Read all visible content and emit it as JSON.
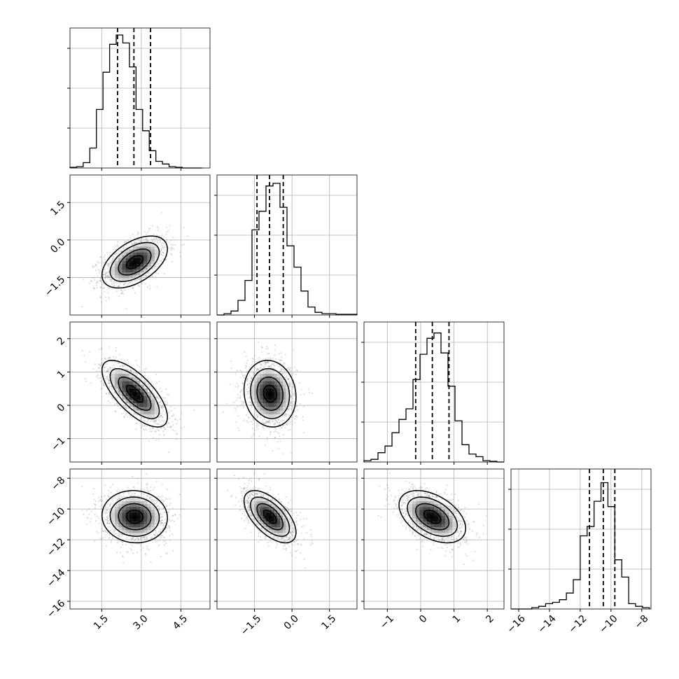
{
  "chart_data": {
    "type": "corner",
    "title": "",
    "params": [
      {
        "range": [
          0.3,
          5.6
        ],
        "ticks": [
          1.5,
          3.0,
          4.5
        ],
        "tick_labels": [
          "1.5",
          "3.0",
          "4.5"
        ],
        "q16": 2.1,
        "q50": 2.72,
        "q84": 3.35,
        "mean": 2.75,
        "sd": 0.62
      },
      {
        "range": [
          -3.0,
          2.6
        ],
        "ticks": [
          -1.5,
          0.0,
          1.5
        ],
        "tick_labels": [
          "−1.5",
          "0.0",
          "1.5"
        ],
        "q16": -1.4,
        "q50": -0.9,
        "q84": -0.35,
        "mean": -0.88,
        "sd": 0.52
      },
      {
        "range": [
          -1.7,
          2.5
        ],
        "ticks": [
          -1,
          0,
          1,
          2
        ],
        "tick_labels": [
          "−1",
          "0",
          "1",
          "2"
        ],
        "q16": -0.15,
        "q50": 0.35,
        "q84": 0.85,
        "mean": 0.35,
        "sd": 0.5
      },
      {
        "range": [
          -16.5,
          -7.4
        ],
        "ticks": [
          -16,
          -14,
          -12,
          -10,
          -8
        ],
        "tick_labels": [
          "−16",
          "−14",
          "−12",
          "−10",
          "−8"
        ],
        "q16": -11.4,
        "q50": -10.5,
        "q84": -9.75,
        "mean": -10.5,
        "sd": 0.85
      }
    ],
    "pairs": [
      {
        "row": 1,
        "col": 0,
        "corr": 0.5
      },
      {
        "row": 2,
        "col": 0,
        "corr": -0.7
      },
      {
        "row": 2,
        "col": 1,
        "corr": -0.1
      },
      {
        "row": 3,
        "col": 0,
        "corr": -0.05
      },
      {
        "row": 3,
        "col": 1,
        "corr": -0.6
      },
      {
        "row": 3,
        "col": 2,
        "corr": -0.45
      }
    ],
    "histograms": [
      {
        "param": 0,
        "bins_x": [
          0.3,
          0.55,
          0.8,
          1.05,
          1.3,
          1.55,
          1.8,
          2.05,
          2.3,
          2.55,
          2.8,
          3.05,
          3.3,
          3.55,
          3.8,
          4.05,
          4.3,
          4.55,
          4.8,
          5.05,
          5.3
        ],
        "heights": [
          0.005,
          0.01,
          0.04,
          0.15,
          0.44,
          0.72,
          0.93,
          1.0,
          0.94,
          0.76,
          0.44,
          0.28,
          0.13,
          0.05,
          0.03,
          0.01,
          0.005,
          0,
          0,
          0
        ]
      },
      {
        "param": 1,
        "bins_x": [
          -3.0,
          -2.72,
          -2.44,
          -2.16,
          -1.88,
          -1.6,
          -1.32,
          -1.04,
          -0.76,
          -0.48,
          -0.2,
          0.08,
          0.36,
          0.64,
          0.92,
          1.2,
          1.48,
          1.76,
          2.04,
          2.32,
          2.6
        ],
        "heights": [
          0,
          0.01,
          0.03,
          0.11,
          0.26,
          0.64,
          0.78,
          0.97,
          0.99,
          0.81,
          0.52,
          0.36,
          0.18,
          0.06,
          0.02,
          0.01,
          0.01,
          0.005,
          0.005,
          0.005
        ]
      },
      {
        "param": 2,
        "bins_x": [
          -1.7,
          -1.49,
          -1.28,
          -1.07,
          -0.86,
          -0.65,
          -0.44,
          -0.23,
          -0.02,
          0.19,
          0.4,
          0.61,
          0.82,
          1.03,
          1.24,
          1.45,
          1.66,
          1.87,
          2.08,
          2.29,
          2.5
        ],
        "heights": [
          0.01,
          0.02,
          0.07,
          0.12,
          0.22,
          0.32,
          0.4,
          0.62,
          0.81,
          0.93,
          0.97,
          0.82,
          0.57,
          0.31,
          0.13,
          0.06,
          0.04,
          0.01,
          0.005,
          0
        ]
      },
      {
        "param": 3,
        "bins_x": [
          -16.5,
          -16.05,
          -15.6,
          -15.15,
          -14.7,
          -14.25,
          -13.8,
          -13.35,
          -12.9,
          -12.45,
          -12.0,
          -11.55,
          -11.1,
          -10.65,
          -10.2,
          -9.75,
          -9.3,
          -8.85,
          -8.4,
          -7.95,
          -7.5
        ],
        "heights": [
          0,
          0,
          0,
          0.01,
          0.02,
          0.04,
          0.05,
          0.07,
          0.12,
          0.22,
          0.55,
          0.62,
          0.81,
          0.95,
          0.77,
          0.37,
          0.24,
          0.04,
          0.02,
          0.01
        ]
      }
    ],
    "grid": true,
    "legend": "none",
    "xlabel": "",
    "ylabel": ""
  }
}
